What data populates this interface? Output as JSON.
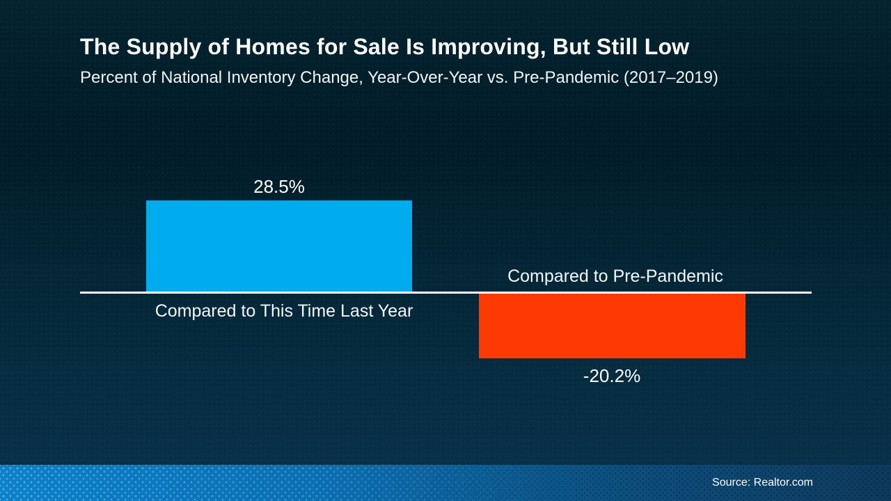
{
  "slide": {
    "title": "The Supply of Homes for Sale Is Improving, But Still Low",
    "subtitle": "Percent of National Inventory Change, Year-Over-Year vs. Pre-Pandemic (2017–2019)",
    "source": "Source: Realtor.com"
  },
  "colors": {
    "background_top": "#04232f",
    "background_bottom": "#0a3350",
    "axis_line": "#ffffff",
    "text": "#ffffff",
    "positive_bar": "#00acee",
    "negative_bar": "#fd3a03",
    "footer_band_left": "#0d81c9",
    "footer_band_right": "#0e3a5c"
  },
  "chart_data": {
    "type": "bar",
    "orientation": "vertical",
    "title": "The Supply of Homes for Sale Is Improving, But Still Low",
    "subtitle": "Percent of National Inventory Change, Year-Over-Year vs. Pre-Pandemic (2017–2019)",
    "categories": [
      "Compared to This Time Last Year",
      "Compared to Pre-Pandemic"
    ],
    "values": [
      28.5,
      -20.2
    ],
    "value_labels": [
      "28.5%",
      "-20.2%"
    ],
    "bar_colors": [
      "#00acee",
      "#fd3a03"
    ],
    "baseline": 0,
    "ylim": [
      -25,
      32
    ],
    "grid": false,
    "legend": false,
    "annotations": [],
    "source": "Source: Realtor.com"
  }
}
